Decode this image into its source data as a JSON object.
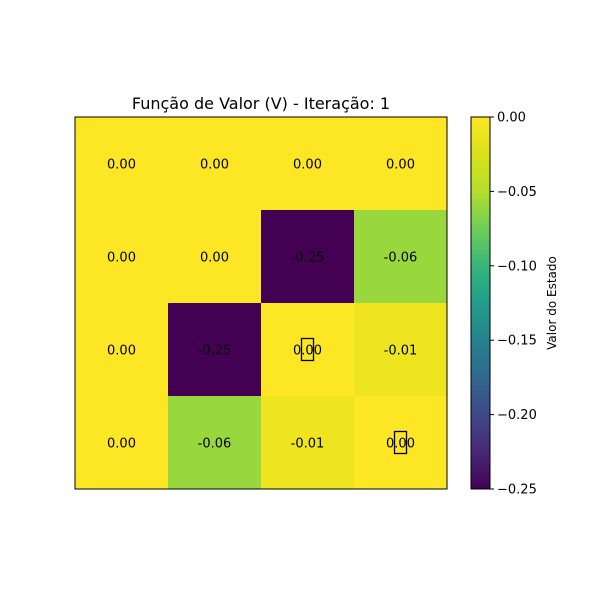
{
  "chart_data": {
    "type": "heatmap",
    "title": "Função de Valor (V) - Iteração: 1",
    "rows": 4,
    "cols": 4,
    "values": [
      [
        0.0,
        0.0,
        0.0,
        0.0
      ],
      [
        0.0,
        0.0,
        -0.25,
        -0.06
      ],
      [
        0.0,
        -0.25,
        0.0,
        -0.01
      ],
      [
        0.0,
        -0.06,
        -0.01,
        0.0
      ]
    ],
    "cell_labels": [
      [
        "0.00",
        "0.00",
        "0.00",
        "0.00"
      ],
      [
        "0.00",
        "0.00",
        "-0.25",
        "-0.06"
      ],
      [
        "0.00",
        "-0.25",
        "0.00",
        "-0.01"
      ],
      [
        "0.00",
        "-0.06",
        "-0.01",
        "0.00"
      ]
    ],
    "missing_glyph_cells": [
      [
        2,
        2
      ],
      [
        3,
        3
      ]
    ],
    "colormap": "viridis",
    "vmin": -0.25,
    "vmax": 0.0,
    "colorbar": {
      "label": "Valor do Estado",
      "ticks": [
        0.0,
        -0.05,
        -0.1,
        -0.15,
        -0.2,
        -0.25
      ],
      "tick_labels": [
        "0.00",
        "−0.05",
        "−0.10",
        "−0.15",
        "−0.20",
        "−0.25"
      ]
    },
    "axes_visible": false,
    "grid": false
  }
}
